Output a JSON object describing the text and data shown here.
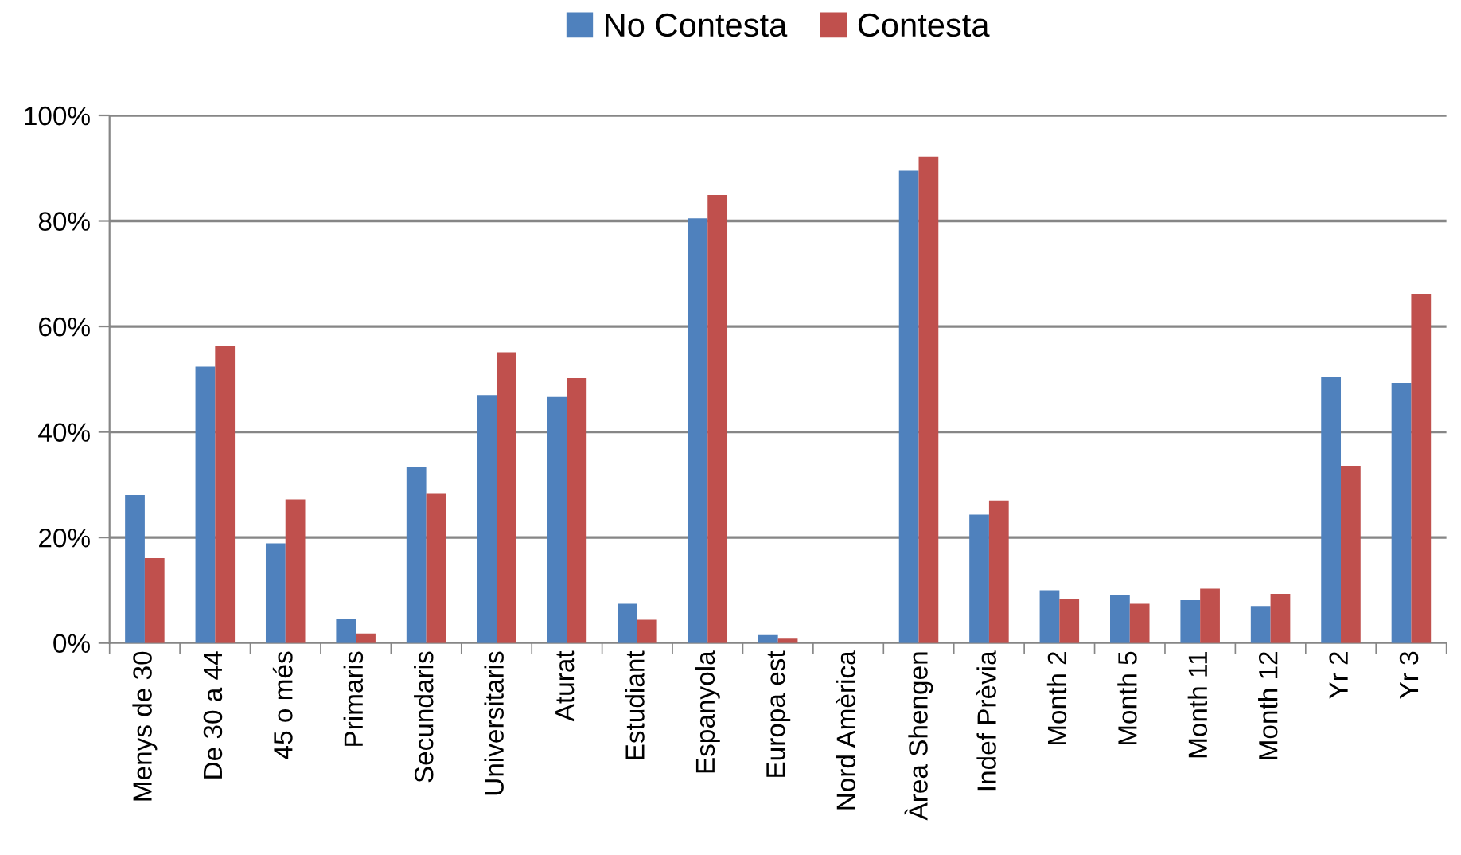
{
  "chart_data": {
    "type": "bar",
    "categories": [
      "Menys de 30",
      "De 30 a 44",
      "45 o més",
      "Primaris",
      "Secundaris",
      "Universitaris",
      "Aturat",
      "Estudiant",
      "Espanyola",
      "Europa est",
      "Nord Amèrica",
      "Àrea Shengen",
      "Indef Prèvia",
      "Month 2",
      "Month 5",
      "Month 11",
      "Month 12",
      "Yr 2",
      "Yr 3"
    ],
    "series": [
      {
        "name": "No Contesta",
        "color": "#4f81bd",
        "values": [
          28.0,
          52.4,
          18.9,
          4.5,
          33.3,
          47.0,
          46.6,
          7.4,
          80.5,
          1.5,
          0,
          89.5,
          24.3,
          10.0,
          9.1,
          8.1,
          7.0,
          50.4,
          49.3
        ]
      },
      {
        "name": "Contesta",
        "color": "#c0504d",
        "values": [
          16.1,
          56.3,
          27.2,
          1.8,
          28.4,
          55.1,
          50.2,
          4.4,
          84.9,
          0.8,
          0,
          92.2,
          27.0,
          8.3,
          7.4,
          10.3,
          9.3,
          33.6,
          66.2
        ]
      }
    ],
    "ylim": [
      0,
      100
    ],
    "yticks": [
      {
        "value": 0,
        "label": "0%"
      },
      {
        "value": 20,
        "label": "20%"
      },
      {
        "value": 40,
        "label": "40%"
      },
      {
        "value": 60,
        "label": "60%"
      },
      {
        "value": 80,
        "label": "80%"
      },
      {
        "value": 100,
        "label": "100%"
      }
    ],
    "grid": "y",
    "legend": "top"
  }
}
